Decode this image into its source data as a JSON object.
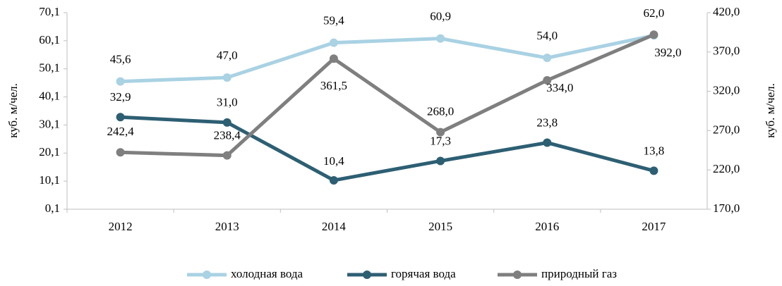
{
  "chart_data": {
    "type": "line",
    "categories": [
      "2012",
      "2013",
      "2014",
      "2015",
      "2016",
      "2017"
    ],
    "series": [
      {
        "name": "холодная вода",
        "color": "#a9d2e3",
        "values": [
          45.6,
          47.0,
          59.4,
          60.9,
          54.0,
          62.0
        ],
        "value_labels": [
          "45,6",
          "47,0",
          "59,4",
          "60,9",
          "54,0",
          "62,0"
        ]
      },
      {
        "name": "горячая вода",
        "color": "#2d5f73",
        "values": [
          32.9,
          31.0,
          10.4,
          17.3,
          23.8,
          13.8
        ],
        "value_labels": [
          "32,9",
          "31,0",
          "10,4",
          "17,3",
          "23,8",
          "13,8"
        ]
      },
      {
        "name": "природный газ",
        "color": "#7f7f7f",
        "axis": "y2",
        "values": [
          242.4,
          238.4,
          361.5,
          268.0,
          334.0,
          392.0
        ],
        "value_labels": [
          "242,4",
          "238,4",
          "361,5",
          "268,0",
          "334,0",
          "392,0"
        ]
      }
    ],
    "ylabel": "куб. м/чел.",
    "y2label": "куб. м/чел.",
    "ylim": [
      0.1,
      70.1
    ],
    "yticks": [
      {
        "value": 0.1,
        "label": "0,1"
      },
      {
        "value": 10.1,
        "label": "10,1"
      },
      {
        "value": 20.1,
        "label": "20,1"
      },
      {
        "value": 30.1,
        "label": "30,1"
      },
      {
        "value": 40.1,
        "label": "40,1"
      },
      {
        "value": 50.1,
        "label": "50,1"
      },
      {
        "value": 60.1,
        "label": "60,1"
      },
      {
        "value": 70.1,
        "label": "70,1"
      }
    ],
    "y2lim": [
      170,
      420
    ],
    "y2ticks": [
      {
        "value": 170,
        "label": "170,0"
      },
      {
        "value": 220,
        "label": "220,0"
      },
      {
        "value": 270,
        "label": "270,0"
      },
      {
        "value": 320,
        "label": "320,0"
      },
      {
        "value": 370,
        "label": "370,0"
      },
      {
        "value": 420,
        "label": "420,0"
      }
    ],
    "legend": "bottom",
    "grid": false
  }
}
